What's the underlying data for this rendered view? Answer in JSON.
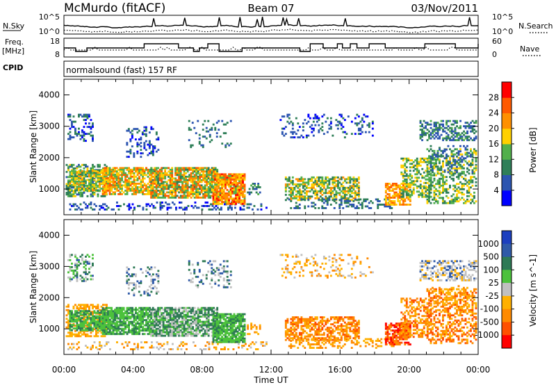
{
  "header": {
    "station": "McMurdo (fitACF)",
    "beam": "Beam 07",
    "date": "03/Nov/2011"
  },
  "noise_panel": {
    "left_label": "N.Sky",
    "right_label": "N.Search",
    "left_ticks": [
      "10^5",
      "10^0"
    ],
    "right_ticks": [
      "10^5",
      "10^0"
    ]
  },
  "freq_panel": {
    "left_label_1": "Freq.",
    "left_label_2": "[MHz]",
    "left_ticks": [
      "18",
      "8"
    ],
    "right_label": "Nave",
    "right_ticks": [
      "60",
      "0"
    ]
  },
  "cpid": {
    "label": "CPID",
    "text": "normalsound (fast) 157 RF"
  },
  "chart_data": [
    {
      "type": "heatmap",
      "panel": "power",
      "ylabel": "Slant Range [km]",
      "ylim": [
        180,
        4500
      ],
      "yticks": [
        "1000",
        "2000",
        "3000",
        "4000"
      ],
      "xlabel": "",
      "xticks": [
        "00:00",
        "04:00",
        "08:00",
        "12:00",
        "16:00",
        "20:00",
        "00:00"
      ],
      "xlim_hours": [
        0,
        24
      ],
      "colorbar": {
        "label": "Power [dB]",
        "ticks": [
          "4",
          "8",
          "12",
          "16",
          "20",
          "24",
          "28"
        ],
        "colors": [
          "#0000ff",
          "#2c55b0",
          "#2f7f58",
          "#52b04c",
          "#ffd000",
          "#ff9000",
          "#ff5a00",
          "#ff0000"
        ]
      }
    },
    {
      "type": "heatmap",
      "panel": "velocity",
      "ylabel": "Slant Range [km]",
      "ylim": [
        180,
        4500
      ],
      "yticks": [
        "1000",
        "2000",
        "3000",
        "4000"
      ],
      "xlabel": "Time UT",
      "xticks": [
        "00:00",
        "04:00",
        "08:00",
        "12:00",
        "16:00",
        "20:00",
        "00:00"
      ],
      "xlim_hours": [
        0,
        24
      ],
      "colorbar": {
        "label": "Velocity [m s^-1]",
        "ticks": [
          "1000",
          "500",
          "100",
          "25",
          "-25",
          "-100",
          "-500",
          "-1000"
        ],
        "colors": [
          "#1c3fbf",
          "#2f5aa8",
          "#2e7a55",
          "#4cc23c",
          "#c0c0c0",
          "#ffb000",
          "#ff8a00",
          "#ff5000",
          "#ff0000"
        ]
      }
    }
  ]
}
